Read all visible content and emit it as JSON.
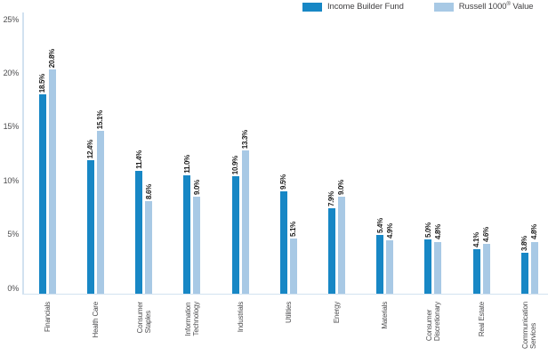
{
  "legend": {
    "items": [
      {
        "name": "Income Builder Fund",
        "color": "#1787C5"
      },
      {
        "name_pre": "Russell 1000",
        "name_reg": "®",
        "name_post": " Value",
        "color": "#A8C9E5"
      }
    ]
  },
  "y_axis": {
    "ticks": [
      {
        "value": 0,
        "label": "0%"
      },
      {
        "value": 5,
        "label": "5%"
      },
      {
        "value": 10,
        "label": "10%"
      },
      {
        "value": 15,
        "label": "15%"
      },
      {
        "value": 20,
        "label": "20%"
      },
      {
        "value": 25,
        "label": "25%"
      }
    ]
  },
  "chart_data": {
    "type": "bar",
    "title": "",
    "xlabel": "",
    "ylabel": "",
    "ylim": [
      0,
      25
    ],
    "grid": false,
    "legend_position": "top-right",
    "value_label_suffix": "%",
    "categories": [
      "Financials",
      "Health Care",
      "Consumer Staples",
      "Information Technology",
      "Industrials",
      "Utilities",
      "Energy",
      "Materials",
      "Consumer Discretionary",
      "Real Estate",
      "Communication Services"
    ],
    "category_lines": [
      [
        "Financials"
      ],
      [
        "Health Care"
      ],
      [
        "Consumer",
        "Staples"
      ],
      [
        "Information",
        "Technology"
      ],
      [
        "Industrials"
      ],
      [
        "Utilities"
      ],
      [
        "Energy"
      ],
      [
        "Materials"
      ],
      [
        "Consumer",
        "Discretionary"
      ],
      [
        "Real Estate"
      ],
      [
        "Communication",
        "Services"
      ]
    ],
    "series": [
      {
        "name": "Income Builder Fund",
        "color": "#1787C5",
        "values": [
          18.5,
          12.4,
          11.4,
          11.0,
          10.9,
          9.5,
          7.9,
          5.4,
          5.0,
          4.1,
          3.8
        ]
      },
      {
        "name": "Russell 1000® Value",
        "color": "#A8C9E5",
        "values": [
          20.8,
          15.1,
          8.6,
          9.0,
          13.3,
          5.1,
          9.0,
          4.9,
          4.8,
          4.6,
          4.8
        ]
      }
    ]
  },
  "colors": {
    "axis_line": "#D2E2F0",
    "tick_text": "#4D4D4F",
    "value_text": "#1A1A1A",
    "legend_text": "#414042"
  }
}
